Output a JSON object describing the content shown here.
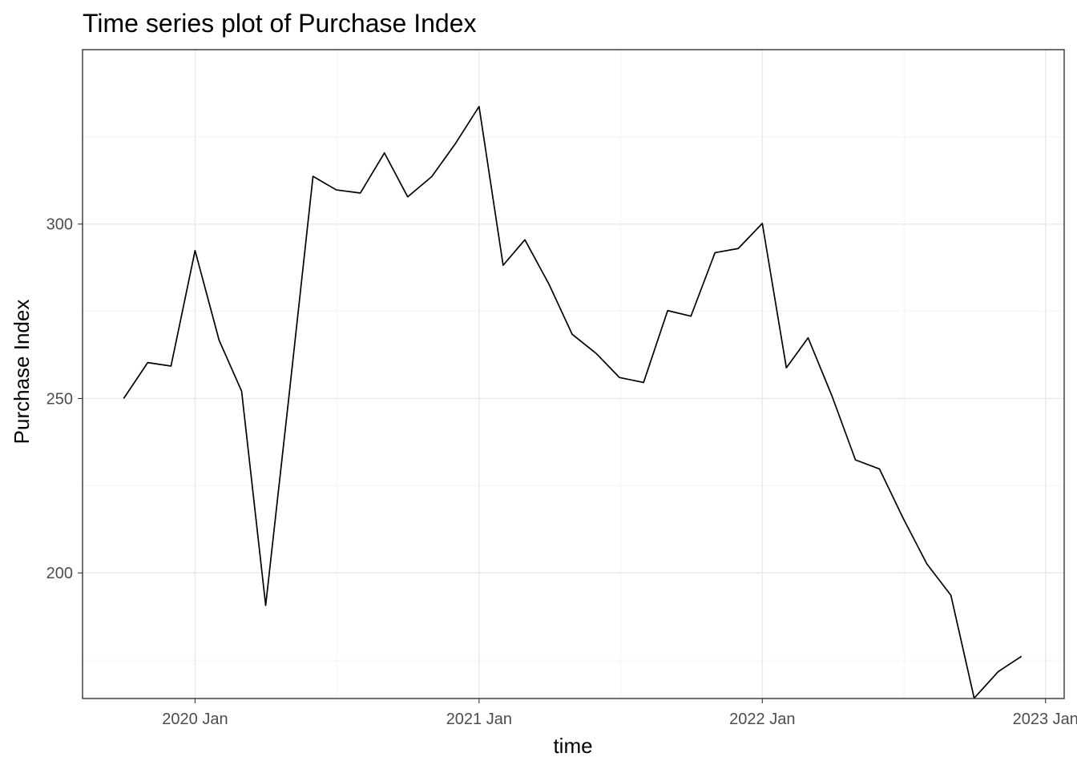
{
  "chart_data": {
    "type": "line",
    "title": "Time series plot of Purchase Index",
    "xlabel": "time",
    "ylabel": "Purchase Index",
    "x_type": "date",
    "x_ticks": [
      "2020-01-01",
      "2021-01-01",
      "2022-01-01",
      "2023-01-01"
    ],
    "x_tick_labels": [
      "2020 Jan",
      "2021 Jan",
      "2022 Jan",
      "2023 Jan"
    ],
    "xlim": [
      "2019-08-09",
      "2023-01-25"
    ],
    "y_ticks": [
      200,
      250,
      300
    ],
    "y_tick_labels": [
      "200",
      "250",
      "300"
    ],
    "ylim": [
      164,
      350
    ],
    "grid": true,
    "line_color": "#000000",
    "series": [
      {
        "x": [
          "2019-10-01",
          "2019-11-01",
          "2019-12-01",
          "2020-01-01",
          "2020-02-01",
          "2020-03-01",
          "2020-04-01",
          "2020-05-01",
          "2020-06-01",
          "2020-07-01",
          "2020-08-01",
          "2020-09-01",
          "2020-10-01",
          "2020-11-01",
          "2020-12-01",
          "2021-01-01",
          "2021-02-01",
          "2021-03-01",
          "2021-04-01",
          "2021-05-01",
          "2021-06-01",
          "2021-07-01",
          "2021-08-01",
          "2021-09-01",
          "2021-10-01",
          "2021-11-01",
          "2021-12-01",
          "2022-01-01",
          "2022-02-01",
          "2022-03-01",
          "2022-04-01",
          "2022-05-01",
          "2022-06-01",
          "2022-07-01",
          "2022-08-01",
          "2022-09-01",
          "2022-10-01",
          "2022-11-01",
          "2022-12-01"
        ],
        "values": [
          250.0,
          260.3,
          259.3,
          292.4,
          266.7,
          252.1,
          190.7,
          250.6,
          313.7,
          309.8,
          308.9,
          320.4,
          307.8,
          313.6,
          322.9,
          333.7,
          288.2,
          295.5,
          282.8,
          268.4,
          262.9,
          256.0,
          254.6,
          275.2,
          273.6,
          291.8,
          293.0,
          300.2,
          258.8,
          267.4,
          250.6,
          232.4,
          229.8,
          215.9,
          202.6,
          193.6,
          164.1,
          171.7,
          176.1
        ]
      }
    ]
  }
}
